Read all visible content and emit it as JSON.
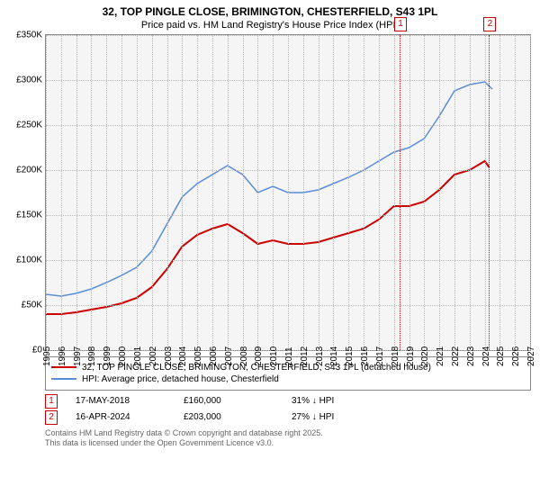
{
  "title_line1": "32, TOP PINGLE CLOSE, BRIMINGTON, CHESTERFIELD, S43 1PL",
  "title_line2": "Price paid vs. HM Land Registry's House Price Index (HPI)",
  "chart": {
    "type": "line",
    "background_color": "#f5f5f5",
    "grid_color": "#bbbbbb",
    "ylim": [
      0,
      350000
    ],
    "ytick_step": 50000,
    "yticks": [
      "£0",
      "£50K",
      "£100K",
      "£150K",
      "£200K",
      "£250K",
      "£300K",
      "£350K"
    ],
    "xlim": [
      1995,
      2027
    ],
    "xticks": [
      1995,
      1996,
      1997,
      1998,
      1999,
      2000,
      2001,
      2002,
      2003,
      2004,
      2005,
      2006,
      2007,
      2008,
      2009,
      2010,
      2011,
      2012,
      2013,
      2014,
      2015,
      2016,
      2017,
      2018,
      2019,
      2020,
      2021,
      2022,
      2023,
      2024,
      2025,
      2026,
      2027
    ],
    "series": [
      {
        "name": "32, TOP PINGLE CLOSE, BRIMINGTON, CHESTERFIELD, S43 1PL (detached house)",
        "color": "#cc0000",
        "line_width": 2,
        "points": [
          [
            1995,
            40000
          ],
          [
            1996,
            40000
          ],
          [
            1997,
            42000
          ],
          [
            1998,
            45000
          ],
          [
            1999,
            48000
          ],
          [
            2000,
            52000
          ],
          [
            2001,
            58000
          ],
          [
            2002,
            70000
          ],
          [
            2003,
            90000
          ],
          [
            2004,
            115000
          ],
          [
            2005,
            128000
          ],
          [
            2006,
            135000
          ],
          [
            2007,
            140000
          ],
          [
            2008,
            130000
          ],
          [
            2009,
            118000
          ],
          [
            2010,
            122000
          ],
          [
            2011,
            118000
          ],
          [
            2012,
            118000
          ],
          [
            2013,
            120000
          ],
          [
            2014,
            125000
          ],
          [
            2015,
            130000
          ],
          [
            2016,
            135000
          ],
          [
            2017,
            145000
          ],
          [
            2018,
            160000
          ],
          [
            2019,
            160000
          ],
          [
            2020,
            165000
          ],
          [
            2021,
            178000
          ],
          [
            2022,
            195000
          ],
          [
            2023,
            200000
          ],
          [
            2024,
            210000
          ],
          [
            2024.3,
            203000
          ]
        ]
      },
      {
        "name": "HPI: Average price, detached house, Chesterfield",
        "color": "#5b8dd6",
        "line_width": 1.5,
        "points": [
          [
            1995,
            62000
          ],
          [
            1996,
            60000
          ],
          [
            1997,
            63000
          ],
          [
            1998,
            68000
          ],
          [
            1999,
            75000
          ],
          [
            2000,
            83000
          ],
          [
            2001,
            92000
          ],
          [
            2002,
            110000
          ],
          [
            2003,
            140000
          ],
          [
            2004,
            170000
          ],
          [
            2005,
            185000
          ],
          [
            2006,
            195000
          ],
          [
            2007,
            205000
          ],
          [
            2008,
            195000
          ],
          [
            2009,
            175000
          ],
          [
            2010,
            182000
          ],
          [
            2011,
            175000
          ],
          [
            2012,
            175000
          ],
          [
            2013,
            178000
          ],
          [
            2014,
            185000
          ],
          [
            2015,
            192000
          ],
          [
            2016,
            200000
          ],
          [
            2017,
            210000
          ],
          [
            2018,
            220000
          ],
          [
            2019,
            225000
          ],
          [
            2020,
            235000
          ],
          [
            2021,
            260000
          ],
          [
            2022,
            288000
          ],
          [
            2023,
            295000
          ],
          [
            2024,
            298000
          ],
          [
            2024.5,
            290000
          ]
        ]
      }
    ],
    "markers": [
      {
        "num": "1",
        "x": 2018.38
      },
      {
        "num": "2",
        "x": 2024.29
      }
    ]
  },
  "legend": {
    "items": [
      {
        "color": "#cc0000",
        "label": "32, TOP PINGLE CLOSE, BRIMINGTON, CHESTERFIELD, S43 1PL (detached house)"
      },
      {
        "color": "#5b8dd6",
        "label": "HPI: Average price, detached house, Chesterfield"
      }
    ]
  },
  "table": {
    "rows": [
      {
        "num": "1",
        "date": "17-MAY-2018",
        "price": "£160,000",
        "delta": "31% ↓ HPI"
      },
      {
        "num": "2",
        "date": "16-APR-2024",
        "price": "£203,000",
        "delta": "27% ↓ HPI"
      }
    ]
  },
  "footer": {
    "line1": "Contains HM Land Registry data © Crown copyright and database right 2025.",
    "line2": "This data is licensed under the Open Government Licence v3.0."
  }
}
